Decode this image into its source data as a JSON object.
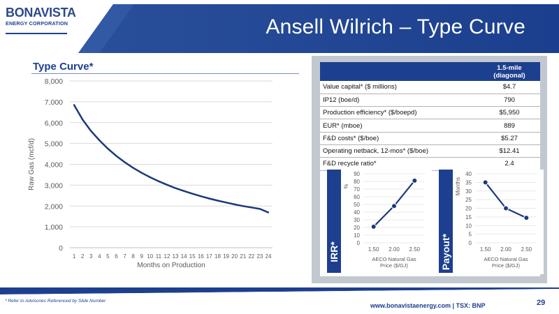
{
  "header": {
    "logo_word": "BONAVISTA",
    "logo_sub": "ENERGY CORPORATION",
    "title": "Ansell Wilrich – Type Curve"
  },
  "section": {
    "title": "Type Curve*"
  },
  "table": {
    "column_header": "1.5-mile\n(diagonal)",
    "rows": [
      {
        "label": "Value capital* ($ millions)",
        "value": "$4.7"
      },
      {
        "label": "IP12 (boe/d)",
        "value": "790"
      },
      {
        "label": "Production efficiency* ($/boepd)",
        "value": "$5,950"
      },
      {
        "label": "EUR* (mboe)",
        "value": "889"
      },
      {
        "label": "F&D costs* ($/boe)",
        "value": "$5.27"
      },
      {
        "label": "Operating netback, 12-mos* ($/boe)",
        "value": "$12.41"
      },
      {
        "label": "F&D recycle ratio*",
        "value": "2.4"
      }
    ]
  },
  "footer": {
    "note": "* Refer to Advisories Referenced by Slide Number",
    "website": "www.bonavistaenergy.com  |  TSX: BNP",
    "page": "29"
  },
  "colors": {
    "brand_blue": "#1d3f8f",
    "line_blue": "#1b3a78",
    "panel_gray": "#c2c8d0"
  },
  "chart_data": [
    {
      "type": "line",
      "title": "",
      "xlabel": "Months on Production",
      "ylabel": "Raw Gas (mcf/d)",
      "ylim": [
        0,
        8000
      ],
      "yticks": [
        "0",
        "1,000",
        "2,000",
        "3,000",
        "4,000",
        "5,000",
        "6,000",
        "7,000",
        "8,000"
      ],
      "x": [
        1,
        2,
        3,
        4,
        5,
        6,
        7,
        8,
        9,
        10,
        11,
        12,
        13,
        14,
        15,
        16,
        17,
        18,
        19,
        20,
        21,
        22,
        23,
        24
      ],
      "series": [
        {
          "values": [
            6850,
            6150,
            5600,
            5150,
            4750,
            4400,
            4100,
            3830,
            3590,
            3380,
            3190,
            3020,
            2860,
            2720,
            2590,
            2470,
            2360,
            2260,
            2170,
            2080,
            2000,
            1930,
            1860,
            1690
          ]
        }
      ],
      "grid": true
    },
    {
      "type": "line",
      "ylabel": "%",
      "side_label": "IRR*",
      "xlabel": "AECO Natural Gas Price ($/GJ)",
      "ylim": [
        0,
        90
      ],
      "yticks": [
        "0",
        "10",
        "20",
        "30",
        "40",
        "50",
        "60",
        "70",
        "80",
        "90"
      ],
      "categories": [
        "1.50",
        "2.00",
        "2.50"
      ],
      "series": [
        {
          "values": [
            21,
            48,
            81
          ]
        }
      ],
      "grid": true
    },
    {
      "type": "line",
      "ylabel": "Months",
      "side_label": "Payout*",
      "xlabel": "AECO Natural Gas Price ($/GJ)",
      "ylim": [
        0,
        40
      ],
      "yticks": [
        "0",
        "5",
        "10",
        "15",
        "20",
        "25",
        "30",
        "35",
        "40"
      ],
      "categories": [
        "1.50",
        "2.00",
        "2.50"
      ],
      "series": [
        {
          "values": [
            35,
            20,
            14.5
          ]
        }
      ],
      "grid": true
    }
  ]
}
